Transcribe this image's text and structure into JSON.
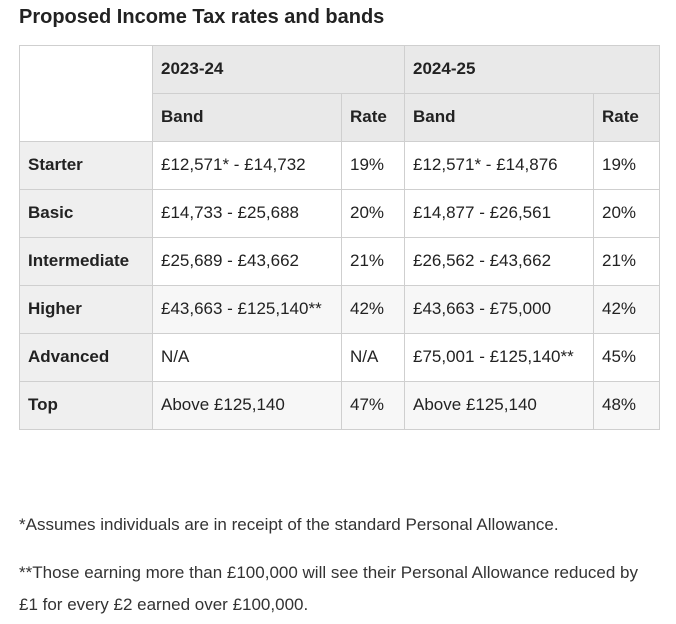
{
  "title": "Proposed Income Tax rates and bands",
  "table": {
    "groups": [
      "2023-24",
      "2024-25"
    ],
    "subheaders": [
      "Band",
      "Rate",
      "Band",
      "Rate"
    ],
    "rows": [
      [
        "Starter",
        "£12,571* - £14,732",
        "19%",
        "£12,571* - £14,876",
        "19%"
      ],
      [
        "Basic",
        "£14,733 - £25,688",
        "20%",
        "£14,877 - £26,561",
        "20%"
      ],
      [
        "Intermediate",
        "£25,689 - £43,662",
        "21%",
        "£26,562 - £43,662",
        "21%"
      ],
      [
        "Higher",
        "£43,663 - £125,140**",
        "42%",
        "£43,663 - £75,000",
        "42%"
      ],
      [
        "Advanced",
        "N/A",
        "N/A",
        "£75,001 - £125,140**",
        "45%"
      ],
      [
        "Top",
        "Above £125,140",
        "47%",
        "Above £125,140",
        "48%"
      ]
    ]
  },
  "footnotes": [
    "*Assumes individuals are in receipt of the standard Personal Allowance.",
    "**Those earning more than £100,000 will see their Personal Allowance reduced by £1 for every £2 earned over £100,000."
  ]
}
